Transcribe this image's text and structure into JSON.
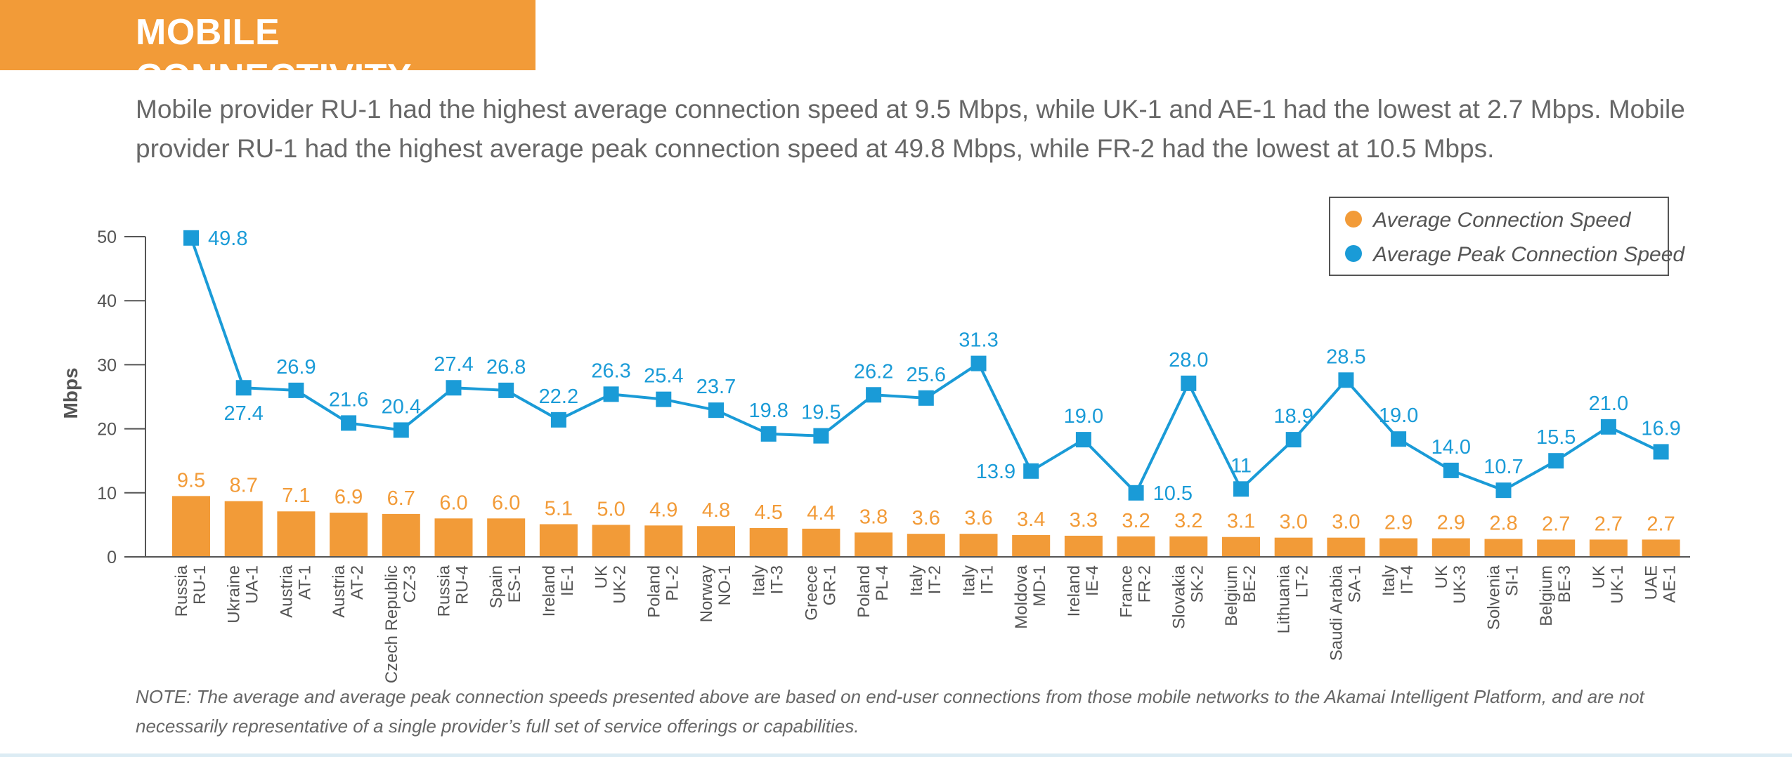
{
  "header": {
    "title": "MOBILE CONNECTIVITY",
    "summary": "Mobile provider RU-1 had the highest average connection speed at 9.5 Mbps, while UK-1 and AE-1 had the lowest at 2.7 Mbps. Mobile provider RU-1 had the highest average peak connection speed at 49.8 Mbps, while FR-2 had the lowest at 10.5 Mbps."
  },
  "colors": {
    "accent": "#f29b38",
    "bar": "#f29b38",
    "peak_line": "#1a9bd7",
    "axis": "#555555"
  },
  "chart_data": {
    "type": "bar",
    "title": "",
    "xlabel": "",
    "ylabel": "Mbps",
    "ylim": [
      0,
      50
    ],
    "yticks": [
      0,
      10,
      20,
      30,
      40,
      50
    ],
    "grid": false,
    "legend_position": "top-right",
    "categories": [
      [
        "Russia",
        "RU-1"
      ],
      [
        "Ukraine",
        "UA-1"
      ],
      [
        "Austria",
        "AT-1"
      ],
      [
        "Austria",
        "AT-2"
      ],
      [
        "Czech Republic",
        "CZ-3"
      ],
      [
        "Russia",
        "RU-4"
      ],
      [
        "Spain",
        "ES-1"
      ],
      [
        "Ireland",
        "IE-1"
      ],
      [
        "UK",
        "UK-2"
      ],
      [
        "Poland",
        "PL-2"
      ],
      [
        "Norway",
        "NO-1"
      ],
      [
        "Italy",
        "IT-3"
      ],
      [
        "Greece",
        "GR-1"
      ],
      [
        "Poland",
        "PL-4"
      ],
      [
        "Italy",
        "IT-2"
      ],
      [
        "Italy",
        "IT-1"
      ],
      [
        "Moldova",
        "MD-1"
      ],
      [
        "Ireland",
        "IE-4"
      ],
      [
        "France",
        "FR-2"
      ],
      [
        "Slovakia",
        "SK-2"
      ],
      [
        "Belgium",
        "BE-2"
      ],
      [
        "Lithuania",
        "LT-2"
      ],
      [
        "Saudi Arabia",
        "SA-1"
      ],
      [
        "Italy",
        "IT-4"
      ],
      [
        "UK",
        "UK-3"
      ],
      [
        "Solvenia",
        "SI-1"
      ],
      [
        "Belgium",
        "BE-3"
      ],
      [
        "UK",
        "UK-1"
      ],
      [
        "UAE",
        "AE-1"
      ]
    ],
    "series": [
      {
        "name": "Average Connection Speed",
        "type": "bar",
        "values": [
          9.5,
          8.7,
          7.1,
          6.9,
          6.7,
          6.0,
          6.0,
          5.1,
          5.0,
          4.9,
          4.8,
          4.5,
          4.4,
          3.8,
          3.6,
          3.6,
          3.4,
          3.3,
          3.2,
          3.2,
          3.1,
          3.0,
          3.0,
          2.9,
          2.9,
          2.8,
          2.7,
          2.7,
          2.7
        ],
        "labels": [
          "9.5",
          "8.7",
          "7.1",
          "6.9",
          "6.7",
          "6.0",
          "6.0",
          "5.1",
          "5.0",
          "4.9",
          "4.8",
          "4.5",
          "4.4",
          "3.8",
          "3.6",
          "3.6",
          "3.4",
          "3.3",
          "3.2",
          "3.2",
          "3.1",
          "3.0",
          "3.0",
          "2.9",
          "2.9",
          "2.8",
          "2.7",
          "2.7",
          "2.7"
        ]
      },
      {
        "name": "Average Peak Connection Speed",
        "type": "line",
        "values": [
          49.8,
          27.4,
          26.9,
          21.6,
          20.4,
          27.4,
          26.8,
          22.2,
          26.3,
          25.4,
          23.7,
          19.8,
          19.5,
          26.2,
          25.6,
          31.3,
          13.9,
          19.0,
          10.5,
          28.0,
          11,
          18.9,
          28.5,
          19.0,
          14.0,
          10.7,
          15.5,
          21.0,
          16.9
        ],
        "labels": [
          "49.8",
          "27.4",
          "26.9",
          "21.6",
          "20.4",
          "27.4",
          "26.8",
          "22.2",
          "26.3",
          "25.4",
          "23.7",
          "19.8",
          "19.5",
          "26.2",
          "25.6",
          "31.3",
          "13.9",
          "19.0",
          "10.5",
          "28.0",
          "11",
          "18.9",
          "28.5",
          "19.0",
          "14.0",
          "10.7",
          "15.5",
          "21.0",
          "16.9"
        ],
        "plotted_values": [
          49.8,
          26.4,
          26.0,
          20.9,
          19.8,
          26.4,
          26.0,
          21.4,
          25.4,
          24.6,
          22.9,
          19.2,
          18.9,
          25.3,
          24.8,
          30.2,
          13.4,
          18.3,
          10.0,
          27.1,
          10.6,
          18.3,
          27.6,
          18.4,
          13.5,
          10.4,
          15.0,
          20.3,
          16.4
        ],
        "label_positions": [
          "right",
          "below",
          "above",
          "above",
          "above",
          "above",
          "above",
          "above",
          "above",
          "above",
          "above",
          "above",
          "above",
          "above",
          "above",
          "above",
          "left",
          "above",
          "right",
          "above",
          "above",
          "above",
          "above",
          "above",
          "above",
          "above",
          "above",
          "above",
          "above"
        ]
      }
    ]
  },
  "note": "NOTE: The average and average peak connection speeds presented above are based on end-user connections from those mobile networks to the Akamai Intelligent Platform, and are not necessarily representative of a single provider’s full set of service offerings or capabilities."
}
